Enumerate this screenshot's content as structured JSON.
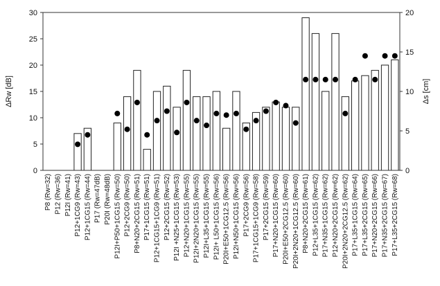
{
  "chart_data": {
    "type": "bar",
    "title": "",
    "xlabel": "",
    "ylabel": "ΔRw [dB]",
    "y2label": "Δs [cm]",
    "ylim": [
      0,
      30
    ],
    "y2lim": [
      0,
      20
    ],
    "yticks": [
      0,
      5,
      10,
      15,
      20,
      25,
      30
    ],
    "y2ticks": [
      0,
      5,
      10,
      15,
      20
    ],
    "categories": [
      "P8 (Rw=32)",
      "P12 (Rw=36)",
      "P12I (Rw=41)",
      "P12+1CG9 (Rw=43)",
      "P12+1CG15 (Rw=44)",
      "P17 (Rw=47dB)",
      "P20I (Rw=48dB)",
      "P12I+P50+1CG15 (Rw=50)",
      "P12+2CG9 (Rw=50)",
      "P8+N20+2CG15 (Rw=51)",
      "P17+1CG15 (Rw=51)",
      "P12+1CG15+1CG9 (Rw=51)",
      "P12+2CG15 (Rw=52)",
      "P12I +N25+1CG15 (Rw=53)",
      "P12+N20+1CG15 (Rw=55)",
      "P12I+2N20+1CG15 (Rw=55)",
      "P12I+L35+1CG15 (Rw=55)",
      "P12I+ L50+1CG15 (Rw=56)",
      "P20I+E50+1CG12.5 (Rw=56)",
      "P12I+N50+1CG15 (Rw=56)",
      "P17+2CG9 (Rw=56)",
      "P17+1CG15+1CG9 (Rw=58)",
      "P17+2CG15 (Rw=59)",
      "P17+N20+1CG15 (Rw=60)",
      "P20I+E50+2CG12.5 (Rw=60)",
      "P20I+2N20+1CG12.5 (Rw=60)",
      "P8+N20+2CG15 (Rw=61)",
      "P12+L35+1CG15 (Rw=62)",
      "P17+N35+1CG15 (Rw=62)",
      "P12+N20+2CG15 (Rw=62)",
      "P20I+2N20+2CG12.5 (Rw=62)",
      "P17+L35+1CG15 (Rw=64)",
      "P17+L35+2CG15 (Rw=65)",
      "P17+N20+2CG15 (Rw=66)",
      "P17+N35+2CG15 (Rw=67)",
      "P17+L35+2CG15 (Rw=68)"
    ],
    "series": [
      {
        "name": "ΔRw [dB]",
        "axis": "left",
        "style": "bar",
        "values": [
          0,
          0,
          0,
          7,
          8,
          0,
          0,
          9,
          14,
          19,
          4,
          15,
          16,
          12,
          19,
          14,
          14,
          15,
          8,
          15,
          9,
          11,
          12,
          13,
          12,
          12,
          29,
          26,
          15,
          26,
          14,
          17,
          18,
          19,
          20,
          21
        ]
      },
      {
        "name": "Δs [cm]",
        "axis": "right",
        "style": "marker",
        "values": [
          null,
          null,
          null,
          3.3,
          4.5,
          null,
          null,
          7.2,
          5.2,
          8.6,
          4.5,
          6.3,
          7.5,
          4.8,
          8.6,
          6.3,
          5.7,
          7.2,
          7.0,
          7.2,
          5.2,
          6.3,
          7.5,
          8.6,
          8.2,
          6.0,
          11.5,
          11.5,
          11.5,
          11.5,
          7.2,
          11.5,
          14.5,
          11.5,
          14.5,
          14.5
        ]
      }
    ]
  }
}
